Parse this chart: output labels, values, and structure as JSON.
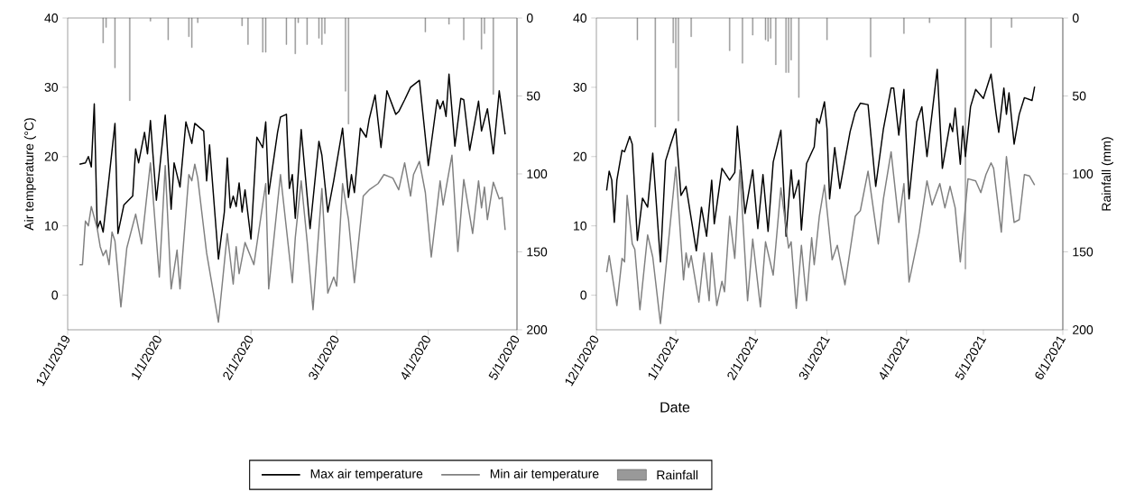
{
  "chart_data": [
    {
      "type": "line",
      "ylabel": "Air temperature (°C)",
      "xlim": [
        "2019-12-01",
        "2020-05-01"
      ],
      "xticks": [
        {
          "value": "2019-12-01",
          "label": "12/1/2019"
        },
        {
          "value": "2020-01-01",
          "label": "1/1/2020"
        },
        {
          "value": "2020-02-01",
          "label": "2/1/2020"
        },
        {
          "value": "2020-03-01",
          "label": "3/1/2020"
        },
        {
          "value": "2020-04-01",
          "label": "4/1/2020"
        },
        {
          "value": "2020-05-01",
          "label": "5/1/2020"
        }
      ],
      "ylim": [
        -5,
        40
      ],
      "yticks": [
        0,
        10,
        20,
        30,
        40
      ],
      "y2lim": [
        200,
        0
      ],
      "y2ticks": [
        0,
        50,
        100,
        150,
        200
      ],
      "marker": "none",
      "legend": "bottom",
      "series": [
        {
          "name": "Max air temperature",
          "color": "#000000",
          "x": [
            "2019-12-05",
            "2019-12-07",
            "2019-12-08",
            "2019-12-09",
            "2019-12-10",
            "2019-12-11",
            "2019-12-12",
            "2019-12-13",
            "2019-12-17",
            "2019-12-18",
            "2019-12-20",
            "2019-12-23",
            "2019-12-24",
            "2019-12-25",
            "2019-12-27",
            "2019-12-28",
            "2019-12-29",
            "2019-12-31",
            "2020-01-03",
            "2020-01-05",
            "2020-01-06",
            "2020-01-08",
            "2020-01-10",
            "2020-01-12",
            "2020-01-13",
            "2020-01-16",
            "2020-01-17",
            "2020-01-18",
            "2020-01-21",
            "2020-01-23",
            "2020-01-24",
            "2020-01-25",
            "2020-01-26",
            "2020-01-27",
            "2020-01-28",
            "2020-01-29",
            "2020-01-30",
            "2020-02-01",
            "2020-02-03",
            "2020-02-05",
            "2020-02-06",
            "2020-02-07",
            "2020-02-10",
            "2020-02-11",
            "2020-02-13",
            "2020-02-14",
            "2020-02-15",
            "2020-02-16",
            "2020-02-18",
            "2020-02-21",
            "2020-02-24",
            "2020-02-25",
            "2020-02-27",
            "2020-02-29",
            "2020-03-03",
            "2020-03-05",
            "2020-03-06",
            "2020-03-07",
            "2020-03-09",
            "2020-03-11",
            "2020-03-12",
            "2020-03-14",
            "2020-03-16",
            "2020-03-18",
            "2020-03-21",
            "2020-03-22",
            "2020-03-24",
            "2020-03-26",
            "2020-03-29",
            "2020-04-01",
            "2020-04-04",
            "2020-04-05",
            "2020-04-06",
            "2020-04-07",
            "2020-04-08",
            "2020-04-10",
            "2020-04-12",
            "2020-04-13",
            "2020-04-15",
            "2020-04-18",
            "2020-04-19",
            "2020-04-21",
            "2020-04-23",
            "2020-04-25",
            "2020-04-27"
          ],
          "values": [
            18.9,
            19.1,
            20.0,
            18.5,
            27.6,
            9.6,
            10.7,
            9.1,
            24.8,
            8.9,
            13.0,
            14.3,
            21.1,
            19.1,
            23.5,
            20.4,
            25.2,
            13.7,
            26.0,
            12.4,
            19.1,
            15.6,
            25.0,
            21.9,
            24.8,
            23.7,
            16.5,
            21.7,
            5.2,
            12.0,
            19.8,
            12.6,
            14.3,
            12.8,
            16.2,
            12.0,
            15.2,
            8.1,
            22.8,
            21.3,
            25.0,
            14.6,
            23.5,
            25.7,
            26.1,
            15.4,
            17.4,
            11.1,
            23.9,
            9.6,
            22.2,
            20.2,
            12.0,
            16.5,
            24.1,
            14.1,
            17.4,
            14.8,
            24.1,
            22.8,
            25.4,
            28.9,
            21.3,
            29.5,
            26.1,
            26.5,
            28.2,
            30.0,
            31.0,
            18.7,
            28.2,
            26.9,
            28.0,
            25.8,
            31.9,
            21.5,
            28.4,
            28.2,
            20.9,
            28.0,
            23.7,
            26.9,
            20.4,
            29.5,
            23.2
          ]
        },
        {
          "name": "Min air temperature",
          "color": "#808080",
          "x": [
            "2019-12-05",
            "2019-12-06",
            "2019-12-07",
            "2019-12-08",
            "2019-12-09",
            "2019-12-11",
            "2019-12-12",
            "2019-12-13",
            "2019-12-14",
            "2019-12-15",
            "2019-12-16",
            "2019-12-17",
            "2019-12-19",
            "2019-12-21",
            "2019-12-24",
            "2019-12-26",
            "2019-12-29",
            "2020-01-01",
            "2020-01-03",
            "2020-01-05",
            "2020-01-07",
            "2020-01-08",
            "2020-01-11",
            "2020-01-12",
            "2020-01-13",
            "2020-01-14",
            "2020-01-17",
            "2020-01-21",
            "2020-01-24",
            "2020-01-26",
            "2020-01-27",
            "2020-01-28",
            "2020-01-30",
            "2020-02-02",
            "2020-02-06",
            "2020-02-07",
            "2020-02-11",
            "2020-02-15",
            "2020-02-16",
            "2020-02-18",
            "2020-02-20",
            "2020-02-22",
            "2020-02-25",
            "2020-02-27",
            "2020-02-29",
            "2020-03-01",
            "2020-03-03",
            "2020-03-05",
            "2020-03-07",
            "2020-03-10",
            "2020-03-12",
            "2020-03-15",
            "2020-03-17",
            "2020-03-20",
            "2020-03-22",
            "2020-03-24",
            "2020-03-26",
            "2020-03-27",
            "2020-03-29",
            "2020-03-31",
            "2020-04-02",
            "2020-04-05",
            "2020-04-06",
            "2020-04-09",
            "2020-04-11",
            "2020-04-13",
            "2020-04-16",
            "2020-04-18",
            "2020-04-19",
            "2020-04-20",
            "2020-04-21",
            "2020-04-23",
            "2020-04-25",
            "2020-04-26",
            "2020-04-27"
          ],
          "values": [
            4.4,
            4.4,
            10.7,
            10.0,
            12.8,
            9.6,
            7.0,
            5.7,
            6.5,
            4.4,
            9.1,
            7.8,
            -1.7,
            6.8,
            11.7,
            7.4,
            19.1,
            2.6,
            18.7,
            0.9,
            6.5,
            0.9,
            17.4,
            16.5,
            18.9,
            16.9,
            6.1,
            -3.9,
            8.9,
            1.6,
            7.0,
            3.1,
            7.6,
            4.4,
            16.1,
            0.9,
            17.4,
            1.8,
            8.3,
            16.5,
            7.8,
            -2.1,
            15.4,
            0.3,
            2.6,
            1.3,
            16.1,
            10.9,
            1.8,
            14.3,
            15.2,
            16.1,
            17.4,
            16.9,
            15.2,
            19.1,
            14.3,
            17.4,
            19.3,
            14.8,
            5.5,
            16.5,
            13.0,
            20.2,
            6.3,
            16.7,
            8.9,
            16.5,
            12.6,
            15.6,
            10.9,
            16.3,
            13.9,
            14.1,
            9.4
          ]
        },
        {
          "name": "Rainfall",
          "type": "bar",
          "axis": "y2",
          "color": "#999999",
          "x": [
            "2019-12-13",
            "2019-12-14",
            "2019-12-17",
            "2019-12-22",
            "2019-12-29",
            "2020-01-04",
            "2020-01-11",
            "2020-01-12",
            "2020-01-14",
            "2020-01-29",
            "2020-01-31",
            "2020-02-05",
            "2020-02-06",
            "2020-02-13",
            "2020-02-16",
            "2020-02-17",
            "2020-02-20",
            "2020-02-24",
            "2020-02-25",
            "2020-02-26",
            "2020-03-04",
            "2020-03-05",
            "2020-03-31",
            "2020-04-08",
            "2020-04-13",
            "2020-04-19",
            "2020-04-20",
            "2020-04-23"
          ],
          "values": [
            16,
            6,
            32,
            53,
            2,
            14,
            12,
            19,
            3,
            5,
            17,
            22,
            22,
            17,
            23,
            3,
            17,
            13,
            17,
            10,
            47,
            68,
            9,
            4,
            14,
            20,
            10,
            49
          ]
        }
      ]
    },
    {
      "type": "line",
      "xlabel": "Date",
      "y2label": "Rainfall (mm)",
      "xlim": [
        "2020-12-01",
        "2021-06-01"
      ],
      "xticks": [
        {
          "value": "2020-12-01",
          "label": "12/1/2020"
        },
        {
          "value": "2021-01-01",
          "label": "1/1/2021"
        },
        {
          "value": "2021-02-01",
          "label": "2/1/2021"
        },
        {
          "value": "2021-03-01",
          "label": "3/1/2021"
        },
        {
          "value": "2021-04-01",
          "label": "4/1/2021"
        },
        {
          "value": "2021-05-01",
          "label": "5/1/2021"
        },
        {
          "value": "2021-06-01",
          "label": "6/1/2021"
        }
      ],
      "ylim": [
        -5,
        40
      ],
      "yticks": [
        0,
        10,
        20,
        30,
        40
      ],
      "y2lim": [
        200,
        0
      ],
      "y2ticks": [
        0,
        50,
        100,
        150,
        200
      ],
      "marker": "none",
      "series": [
        {
          "color": "#000000",
          "x": [
            "2020-12-05",
            "2020-12-06",
            "2020-12-07",
            "2020-12-08",
            "2020-12-09",
            "2020-12-11",
            "2020-12-12",
            "2020-12-14",
            "2020-12-15",
            "2020-12-17",
            "2020-12-19",
            "2020-12-21",
            "2020-12-23",
            "2020-12-26",
            "2020-12-28",
            "2020-12-30",
            "2021-01-01",
            "2021-01-03",
            "2021-01-05",
            "2021-01-09",
            "2021-01-11",
            "2021-01-13",
            "2021-01-15",
            "2021-01-16",
            "2021-01-19",
            "2021-01-22",
            "2021-01-24",
            "2021-01-25",
            "2021-01-28",
            "2021-01-31",
            "2021-02-02",
            "2021-02-04",
            "2021-02-06",
            "2021-02-08",
            "2021-02-11",
            "2021-02-13",
            "2021-02-15",
            "2021-02-16",
            "2021-02-18",
            "2021-02-19",
            "2021-02-21",
            "2021-02-24",
            "2021-02-25",
            "2021-02-26",
            "2021-02-28",
            "2021-03-01",
            "2021-03-02",
            "2021-03-04",
            "2021-03-06",
            "2021-03-10",
            "2021-03-12",
            "2021-03-14",
            "2021-03-17",
            "2021-03-20",
            "2021-03-23",
            "2021-03-26",
            "2021-03-27",
            "2021-03-29",
            "2021-03-31",
            "2021-04-02",
            "2021-04-05",
            "2021-04-07",
            "2021-04-09",
            "2021-04-13",
            "2021-04-15",
            "2021-04-18",
            "2021-04-19",
            "2021-04-20",
            "2021-04-22",
            "2021-04-23",
            "2021-04-24",
            "2021-04-26",
            "2021-04-28",
            "2021-05-01",
            "2021-05-04",
            "2021-05-06",
            "2021-05-07",
            "2021-05-09",
            "2021-05-10",
            "2021-05-11",
            "2021-05-13",
            "2021-05-15",
            "2021-05-17",
            "2021-05-20",
            "2021-05-21"
          ],
          "values": [
            15.1,
            17.9,
            16.6,
            10.5,
            16.6,
            20.9,
            20.7,
            22.9,
            21.8,
            7.9,
            14.0,
            12.7,
            20.5,
            4.8,
            19.4,
            21.8,
            24.0,
            14.4,
            15.7,
            6.4,
            12.7,
            8.5,
            16.6,
            10.3,
            18.3,
            16.6,
            17.7,
            24.4,
            11.8,
            18.1,
            9.6,
            17.4,
            9.2,
            19.2,
            23.8,
            8.5,
            18.1,
            14.0,
            16.6,
            9.4,
            19.0,
            21.4,
            25.5,
            24.8,
            27.9,
            24.0,
            13.9,
            21.3,
            15.4,
            23.6,
            26.4,
            27.7,
            27.5,
            15.7,
            24.0,
            29.9,
            29.9,
            23.1,
            29.7,
            13.9,
            25.0,
            27.2,
            20.0,
            32.6,
            18.3,
            24.8,
            23.6,
            27.0,
            18.9,
            24.4,
            20.0,
            27.2,
            29.7,
            28.4,
            31.9,
            26.1,
            23.5,
            29.9,
            26.1,
            29.2,
            21.8,
            26.1,
            28.5,
            28.1,
            30.1
          ]
        },
        {
          "color": "#808080",
          "x": [
            "2020-12-05",
            "2020-12-06",
            "2020-12-09",
            "2020-12-11",
            "2020-12-12",
            "2020-12-13",
            "2020-12-15",
            "2020-12-16",
            "2020-12-18",
            "2020-12-21",
            "2020-12-23",
            "2020-12-26",
            "2021-01-01",
            "2021-01-04",
            "2021-01-05",
            "2021-01-06",
            "2021-01-07",
            "2021-01-10",
            "2021-01-12",
            "2021-01-14",
            "2021-01-15",
            "2021-01-17",
            "2021-01-19",
            "2021-01-20",
            "2021-01-22",
            "2021-01-24",
            "2021-01-26",
            "2021-01-29",
            "2021-01-31",
            "2021-02-03",
            "2021-02-05",
            "2021-02-08",
            "2021-02-11",
            "2021-02-14",
            "2021-02-15",
            "2021-02-17",
            "2021-02-19",
            "2021-02-21",
            "2021-02-23",
            "2021-02-24",
            "2021-02-26",
            "2021-02-28",
            "2021-03-03",
            "2021-03-05",
            "2021-03-08",
            "2021-03-12",
            "2021-03-14",
            "2021-03-17",
            "2021-03-21",
            "2021-03-23",
            "2021-03-26",
            "2021-03-29",
            "2021-03-31",
            "2021-04-02",
            "2021-04-06",
            "2021-04-09",
            "2021-04-11",
            "2021-04-14",
            "2021-04-16",
            "2021-04-18",
            "2021-04-20",
            "2021-04-22",
            "2021-04-25",
            "2021-04-28",
            "2021-04-30",
            "2021-05-02",
            "2021-05-04",
            "2021-05-05",
            "2021-05-08",
            "2021-05-10",
            "2021-05-13",
            "2021-05-15",
            "2021-05-17",
            "2021-05-19",
            "2021-05-21"
          ],
          "values": [
            3.3,
            5.7,
            -1.5,
            5.3,
            4.8,
            14.4,
            7.4,
            6.6,
            -2.1,
            8.7,
            5.5,
            -4.1,
            18.5,
            2.2,
            6.1,
            4.0,
            5.7,
            -1.0,
            6.1,
            -0.8,
            6.1,
            -1.5,
            2.0,
            0.5,
            11.4,
            5.3,
            18.1,
            -0.8,
            8.1,
            -1.7,
            7.7,
            2.9,
            15.5,
            6.8,
            7.7,
            -1.9,
            7.2,
            -0.8,
            8.3,
            4.4,
            11.4,
            15.9,
            5.1,
            7.2,
            1.5,
            11.4,
            12.2,
            17.9,
            7.4,
            13.9,
            20.7,
            10.5,
            16.1,
            1.9,
            9.1,
            16.5,
            13.0,
            16.1,
            12.6,
            15.7,
            12.6,
            4.8,
            16.8,
            16.5,
            14.8,
            17.4,
            19.1,
            18.3,
            9.1,
            20.0,
            10.5,
            10.9,
            17.4,
            17.2,
            15.9
          ]
        },
        {
          "type": "bar",
          "axis": "y2",
          "color": "#999999",
          "x": [
            "2020-12-17",
            "2020-12-24",
            "2020-12-31",
            "2021-01-01",
            "2021-01-02",
            "2021-01-07",
            "2021-01-22",
            "2021-01-27",
            "2021-01-31",
            "2021-02-05",
            "2021-02-06",
            "2021-02-07",
            "2021-02-09",
            "2021-02-13",
            "2021-02-14",
            "2021-02-15",
            "2021-02-18",
            "2021-03-01",
            "2021-03-18",
            "2021-03-31",
            "2021-04-10",
            "2021-04-24",
            "2021-05-04",
            "2021-05-12"
          ],
          "values": [
            14,
            70,
            16,
            32,
            66,
            12,
            21,
            29,
            11,
            14,
            15,
            13,
            30,
            35,
            35,
            27,
            51,
            14,
            25,
            10,
            3,
            161,
            19,
            6
          ]
        }
      ]
    }
  ]
}
